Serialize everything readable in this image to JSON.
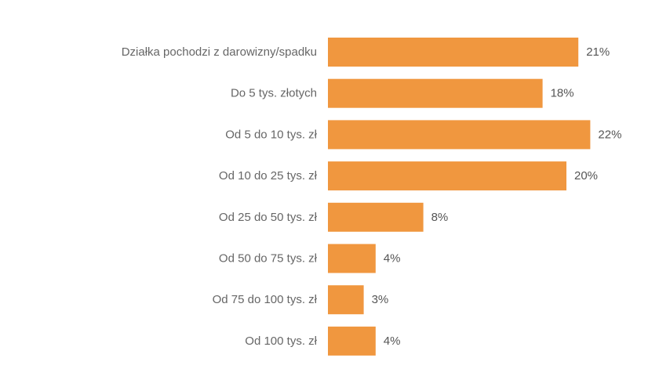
{
  "chart_data": {
    "type": "bar",
    "orientation": "horizontal",
    "categories": [
      "Działka pochodzi z darowizny/spadku",
      "Do 5 tys. złotych",
      "Od 5 do 10 tys. zł",
      "Od 10 do 25 tys. zł",
      "Od 25 do 50 tys. zł",
      "Od 50 do 75 tys. zł",
      "Od 75 do 100 tys. zł",
      "Od 100 tys. zł"
    ],
    "values": [
      21,
      18,
      22,
      20,
      8,
      4,
      3,
      4
    ],
    "value_labels": [
      "21%",
      "18%",
      "22%",
      "20%",
      "8%",
      "4%",
      "3%",
      "4%"
    ],
    "unit": "%",
    "title": "",
    "xlabel": "",
    "ylabel": "",
    "grid": false,
    "legend": "none",
    "colors": {
      "bar": "#F0973F",
      "category_text": "#666666",
      "value_text": "#555555"
    }
  }
}
